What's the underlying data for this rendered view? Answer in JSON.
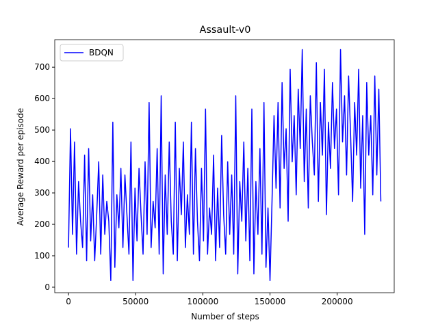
{
  "chart_data": {
    "type": "line",
    "title": "Assault-v0",
    "xlabel": "Number of steps",
    "ylabel": "Average Reward per episode",
    "x": [
      0,
      1500,
      3000,
      4500,
      6000,
      7500,
      9000,
      10500,
      12000,
      13500,
      15000,
      16500,
      18000,
      19500,
      21000,
      22500,
      24000,
      25500,
      27000,
      28500,
      30000,
      31500,
      33000,
      34500,
      36000,
      37500,
      39000,
      40500,
      42000,
      43500,
      45000,
      46500,
      48000,
      49500,
      51000,
      52500,
      54000,
      55500,
      57000,
      58500,
      60000,
      61500,
      63000,
      64500,
      66000,
      67500,
      69000,
      70500,
      72000,
      73500,
      75000,
      76500,
      78000,
      79500,
      81000,
      82500,
      84000,
      85500,
      87000,
      88500,
      90000,
      91500,
      93000,
      94500,
      96000,
      97500,
      99000,
      100500,
      102000,
      103500,
      105000,
      106500,
      108000,
      109500,
      111000,
      112500,
      114000,
      115500,
      117000,
      118500,
      120000,
      121500,
      123000,
      124500,
      126000,
      127500,
      129000,
      130500,
      132000,
      133500,
      135000,
      136500,
      138000,
      139500,
      141000,
      142500,
      144000,
      145500,
      147000,
      148500,
      150000,
      151500,
      153000,
      154500,
      156000,
      157500,
      159000,
      160500,
      162000,
      163500,
      165000,
      166500,
      168000,
      169500,
      171000,
      172500,
      174000,
      175500,
      177000,
      178500,
      180000,
      181500,
      183000,
      184500,
      186000,
      187500,
      189000,
      190500,
      192000,
      193500,
      195000,
      196500,
      198000,
      199500,
      201000,
      202500,
      204000,
      205500,
      207000,
      208500,
      210000,
      211500,
      213000,
      214500,
      216000,
      217500,
      219000,
      220500,
      222000,
      223500,
      225000,
      226500,
      228000,
      229500,
      231000,
      232500
    ],
    "series": [
      {
        "name": "BDQN",
        "color": "#0000ff",
        "values": [
          126,
          504,
          168,
          462,
          105,
          336,
          210,
          126,
          420,
          84,
          441,
          147,
          294,
          84,
          231,
          399,
          105,
          357,
          168,
          273,
          210,
          21,
          525,
          63,
          294,
          189,
          378,
          126,
          357,
          231,
          105,
          462,
          21,
          315,
          147,
          378,
          231,
          105,
          399,
          168,
          588,
          126,
          273,
          189,
          441,
          105,
          609,
          42,
          357,
          168,
          462,
          210,
          105,
          525,
          84,
          378,
          231,
          462,
          126,
          294,
          168,
          525,
          105,
          441,
          210,
          84,
          378,
          147,
          567,
          105,
          252,
          168,
          420,
          84,
          315,
          126,
          483,
          231,
          105,
          399,
          168,
          357,
          105,
          609,
          42,
          336,
          210,
          462,
          147,
          378,
          84,
          567,
          42,
          336,
          168,
          441,
          105,
          588,
          63,
          252,
          21,
          273,
          546,
          315,
          588,
          252,
          651,
          378,
          504,
          210,
          693,
          399,
          546,
          294,
          630,
          441,
          756,
          336,
          567,
          252,
          609,
          462,
          357,
          714,
          273,
          588,
          420,
          693,
          231,
          525,
          378,
          651,
          441,
          567,
          294,
          756,
          462,
          609,
          357,
          672,
          483,
          273,
          588,
          420,
          693,
          315,
          546,
          168,
          651,
          420,
          546,
          294,
          672,
          357,
          630,
          273
        ]
      }
    ],
    "xlim": [
      -10230,
      242450
    ],
    "ylim": [
      -17.5,
      787.5
    ],
    "xticks": [
      0,
      50000,
      100000,
      150000,
      200000
    ],
    "yticks": [
      0,
      100,
      200,
      300,
      400,
      500,
      600,
      700
    ],
    "legend": "upper left"
  }
}
